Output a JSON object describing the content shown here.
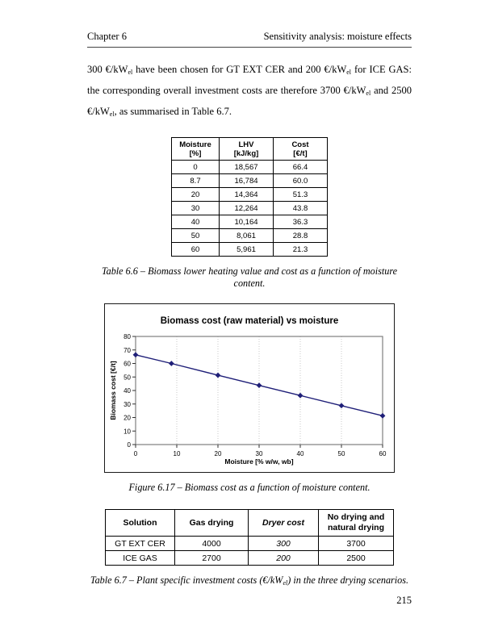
{
  "header": {
    "left": "Chapter 6",
    "right": "Sensitivity analysis: moisture effects"
  },
  "paragraph": {
    "segments": [
      {
        "text": "300 €/kW"
      },
      {
        "text": "el",
        "sub": true
      },
      {
        "text": " have been chosen for GT EXT CER and 200 €/kW"
      },
      {
        "text": "el",
        "sub": true
      },
      {
        "text": " for ICE GAS: the corresponding overall investment costs are therefore 3700 €/kW"
      },
      {
        "text": "el",
        "sub": true
      },
      {
        "text": " and 2500 €/kW"
      },
      {
        "text": "el",
        "sub": true
      },
      {
        "text": ", as summarised in Table 6.7."
      }
    ]
  },
  "table66": {
    "headers": [
      {
        "l1": "Moisture",
        "l2": "[%]"
      },
      {
        "l1": "LHV",
        "l2": "[kJ/kg]"
      },
      {
        "l1": "Cost",
        "l2": "[€/t]"
      }
    ],
    "rows": [
      [
        "0",
        "18,567",
        "66.4"
      ],
      [
        "8.7",
        "16,784",
        "60.0"
      ],
      [
        "20",
        "14,364",
        "51.3"
      ],
      [
        "30",
        "12,264",
        "43.8"
      ],
      [
        "40",
        "10,164",
        "36.3"
      ],
      [
        "50",
        "8,061",
        "28.8"
      ],
      [
        "60",
        "5,961",
        "21.3"
      ]
    ],
    "caption": "Table 6.6 – Biomass lower heating value and cost as a function of moisture content."
  },
  "chart_data": {
    "type": "line",
    "title": "Biomass cost (raw material) vs moisture",
    "xlabel": "Moisture [% w/w, wb]",
    "ylabel": "Biomass cost [€/t]",
    "x": [
      0,
      8.7,
      20,
      30,
      40,
      50,
      60
    ],
    "y": [
      66.4,
      60.0,
      51.3,
      43.8,
      36.3,
      28.8,
      21.3
    ],
    "xlim": [
      0,
      60
    ],
    "ylim": [
      0,
      80
    ],
    "xticks": [
      0,
      10,
      20,
      30,
      40,
      50,
      60
    ],
    "yticks": [
      0,
      10,
      20,
      30,
      40,
      50,
      60,
      70,
      80
    ],
    "grid": "vertical-dotted",
    "legend": "none",
    "marker": "diamond",
    "line_color": "#1f1f78",
    "grid_color": "#c9c9c9",
    "axis_color": "#7f7f7f"
  },
  "figure": {
    "caption": "Figure 6.17 – Biomass cost as a function of moisture content."
  },
  "table67": {
    "headers": [
      {
        "l1": "Solution",
        "l2": ""
      },
      {
        "l1": "Gas drying",
        "l2": ""
      },
      {
        "l1": "Dryer cost",
        "l2": ""
      },
      {
        "l1": "No drying and",
        "l2": "natural drying"
      }
    ],
    "rows": [
      [
        "GT EXT CER",
        "4000",
        "300",
        "3700"
      ],
      [
        "ICE GAS",
        "2700",
        "200",
        "2500"
      ]
    ],
    "caption_parts": [
      {
        "text": "Table 6.7 – Plant specific investment costs (€/kW"
      },
      {
        "text": "el",
        "sub": true
      },
      {
        "text": ") in the three drying scenarios."
      }
    ]
  },
  "page": {
    "number": "215"
  }
}
